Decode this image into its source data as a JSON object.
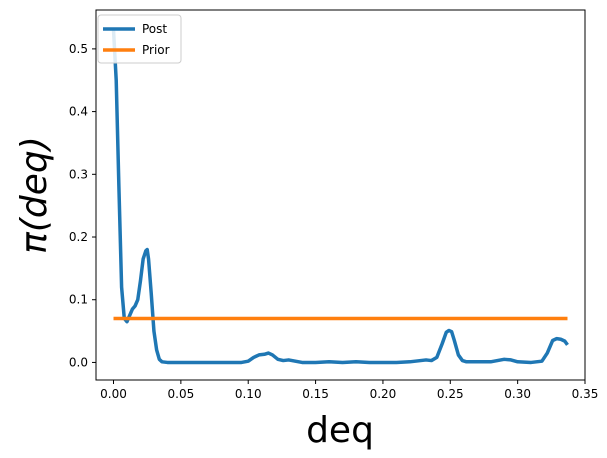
{
  "chart_data": {
    "type": "line",
    "title": "",
    "xlabel": "deq",
    "ylabel": "π(deq)",
    "xlim": [
      -0.013,
      0.35
    ],
    "ylim": [
      -0.028,
      0.562
    ],
    "xticks": [
      0.0,
      0.05,
      0.1,
      0.15,
      0.2,
      0.25,
      0.3,
      0.35
    ],
    "xtick_labels": [
      "0.00",
      "0.05",
      "0.10",
      "0.15",
      "0.20",
      "0.25",
      "0.30",
      "0.35"
    ],
    "yticks": [
      0.0,
      0.1,
      0.2,
      0.3,
      0.4,
      0.5
    ],
    "ytick_labels": [
      "0.0",
      "0.1",
      "0.2",
      "0.3",
      "0.4",
      "0.5"
    ],
    "grid": false,
    "legend_position": "upper-left",
    "series": [
      {
        "name": "Post",
        "color": "#1f77b4",
        "x": [
          0.0,
          0.002,
          0.004,
          0.006,
          0.008,
          0.01,
          0.012,
          0.014,
          0.016,
          0.018,
          0.02,
          0.022,
          0.024,
          0.025,
          0.026,
          0.028,
          0.03,
          0.032,
          0.034,
          0.036,
          0.04,
          0.05,
          0.06,
          0.08,
          0.095,
          0.1,
          0.104,
          0.108,
          0.112,
          0.115,
          0.118,
          0.122,
          0.126,
          0.13,
          0.135,
          0.14,
          0.15,
          0.16,
          0.17,
          0.18,
          0.19,
          0.2,
          0.21,
          0.22,
          0.228,
          0.232,
          0.236,
          0.24,
          0.244,
          0.247,
          0.249,
          0.251,
          0.253,
          0.256,
          0.259,
          0.262,
          0.266,
          0.27,
          0.28,
          0.285,
          0.29,
          0.295,
          0.3,
          0.31,
          0.318,
          0.322,
          0.326,
          0.329,
          0.332,
          0.335,
          0.337
        ],
        "y": [
          0.53,
          0.45,
          0.28,
          0.12,
          0.07,
          0.065,
          0.075,
          0.085,
          0.09,
          0.1,
          0.13,
          0.165,
          0.178,
          0.18,
          0.165,
          0.11,
          0.05,
          0.02,
          0.005,
          0.001,
          0.0,
          0.0,
          0.0,
          0.0,
          0.0,
          0.002,
          0.008,
          0.012,
          0.013,
          0.015,
          0.012,
          0.005,
          0.003,
          0.004,
          0.002,
          0.0,
          0.0,
          0.001,
          0.0,
          0.001,
          0.0,
          0.0,
          0.0,
          0.001,
          0.003,
          0.004,
          0.003,
          0.008,
          0.03,
          0.048,
          0.051,
          0.049,
          0.035,
          0.012,
          0.003,
          0.001,
          0.001,
          0.001,
          0.001,
          0.003,
          0.005,
          0.004,
          0.001,
          0.0,
          0.002,
          0.015,
          0.035,
          0.038,
          0.037,
          0.034,
          0.028
        ]
      },
      {
        "name": "Prior",
        "color": "#ff7f0e",
        "x": [
          0.0,
          0.337
        ],
        "y": [
          0.07,
          0.07
        ]
      }
    ]
  }
}
